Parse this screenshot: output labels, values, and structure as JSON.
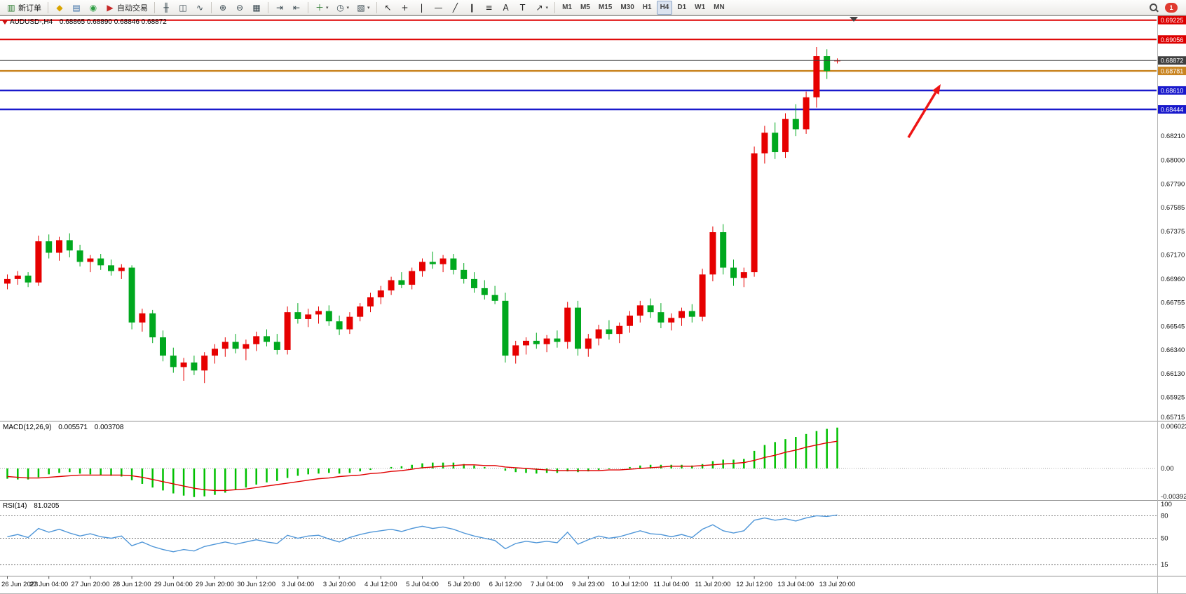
{
  "toolbar": {
    "notification_count": "1",
    "groups": [
      {
        "name": "trade",
        "items": [
          {
            "name": "new-order-button",
            "glyph": "▥",
            "color": "#2e7d32",
            "label": "新订单"
          }
        ]
      },
      {
        "name": "apps",
        "items": [
          {
            "name": "metaeditor-button",
            "glyph": "◆",
            "color": "#d9a400"
          },
          {
            "name": "print-button",
            "glyph": "▤",
            "color": "#3a6ea5"
          },
          {
            "name": "community-button",
            "glyph": "◉",
            "color": "#2f9e44"
          },
          {
            "name": "autotrading-button",
            "glyph": "▶",
            "color": "#c62828",
            "label": "自动交易"
          }
        ]
      },
      {
        "name": "chart-type",
        "items": [
          {
            "name": "bar-chart-button",
            "glyph": "╫",
            "color": "#37474f"
          },
          {
            "name": "candlestick-button",
            "glyph": "◫",
            "color": "#37474f"
          },
          {
            "name": "line-chart-button",
            "glyph": "∿",
            "color": "#37474f"
          }
        ]
      },
      {
        "name": "zoom",
        "items": [
          {
            "name": "zoom-in-button",
            "glyph": "⊕",
            "color": "#37474f"
          },
          {
            "name": "zoom-out-button",
            "glyph": "⊖",
            "color": "#37474f"
          },
          {
            "name": "tile-windows-button",
            "glyph": "▦",
            "color": "#37474f"
          }
        ]
      },
      {
        "name": "scroll",
        "items": [
          {
            "name": "auto-scroll-button",
            "glyph": "⇥",
            "color": "#37474f"
          },
          {
            "name": "chart-shift-button",
            "glyph": "⇤",
            "color": "#37474f"
          }
        ]
      },
      {
        "name": "dropdowns",
        "items": [
          {
            "name": "indicators-button",
            "glyph": "＋",
            "color": "#2e7d32",
            "caret": true
          },
          {
            "name": "periods-button",
            "glyph": "◷",
            "color": "#37474f",
            "caret": true
          },
          {
            "name": "templates-button",
            "glyph": "▧",
            "color": "#37474f",
            "caret": true
          }
        ]
      },
      {
        "name": "drawing",
        "items": [
          {
            "name": "cursor-button",
            "glyph": "↖",
            "color": "#222222"
          },
          {
            "name": "crosshair-button",
            "glyph": "+",
            "color": "#222222"
          },
          {
            "name": "vertical-line-button",
            "glyph": "|",
            "color": "#222222"
          },
          {
            "name": "horizontal-line-button",
            "glyph": "—",
            "color": "#222222"
          },
          {
            "name": "trendline-button",
            "glyph": "╱",
            "color": "#222222"
          },
          {
            "name": "channel-button",
            "glyph": "∥",
            "color": "#222222"
          },
          {
            "name": "fibonacci-button",
            "glyph": "≡",
            "color": "#222222"
          },
          {
            "name": "text-button",
            "glyph": "A",
            "color": "#222222"
          },
          {
            "name": "text-label-button",
            "glyph": "T",
            "color": "#222222"
          },
          {
            "name": "arrows-button",
            "glyph": "↗",
            "color": "#222222",
            "caret": true
          }
        ]
      },
      {
        "name": "timeframes",
        "items": [
          {
            "name": "tf-m1-button",
            "label": "M1"
          },
          {
            "name": "tf-m5-button",
            "label": "M5"
          },
          {
            "name": "tf-m15-button",
            "label": "M15"
          },
          {
            "name": "tf-m30-button",
            "label": "M30"
          },
          {
            "name": "tf-h1-button",
            "label": "H1"
          },
          {
            "name": "tf-h4-button",
            "label": "H4",
            "active": true
          },
          {
            "name": "tf-d1-button",
            "label": "D1"
          },
          {
            "name": "tf-w1-button",
            "label": "W1"
          },
          {
            "name": "tf-mn-button",
            "label": "MN"
          }
        ]
      }
    ]
  },
  "chart_data": {
    "type": "candlestick",
    "symbol_period": "AUDUSD-,H4",
    "ohlc_text": "0.68865 0.68890 0.68846 0.68872",
    "colors": {
      "bull": "#e60000",
      "bear": "#00a81e",
      "macd_hist": "#00c000",
      "macd_signal": "#e00000",
      "rsi": "#4f96d8"
    },
    "x_labels": [
      "26 Jun 2023",
      "27 Jun 04:00",
      "27 Jun 20:00",
      "28 Jun 12:00",
      "29 Jun 04:00",
      "29 Jun 20:00",
      "30 Jun 12:00",
      "3 Jul 04:00",
      "3 Jul 20:00",
      "4 Jul 12:00",
      "5 Jul 04:00",
      "5 Jul 20:00",
      "6 Jul 12:00",
      "7 Jul 04:00",
      "9 Jul 23:00",
      "10 Jul 12:00",
      "11 Jul 04:00",
      "11 Jul 20:00",
      "12 Jul 12:00",
      "13 Jul 04:00",
      "13 Jul 20:00"
    ],
    "candles": [
      [
        0.6692,
        0.67,
        0.6687,
        0.6696
      ],
      [
        0.6696,
        0.6703,
        0.6691,
        0.6699
      ],
      [
        0.6699,
        0.6702,
        0.6689,
        0.6693
      ],
      [
        0.6693,
        0.6734,
        0.669,
        0.6729
      ],
      [
        0.6729,
        0.6735,
        0.6714,
        0.6719
      ],
      [
        0.6719,
        0.6733,
        0.6712,
        0.673
      ],
      [
        0.673,
        0.6736,
        0.6715,
        0.6721
      ],
      [
        0.6721,
        0.6726,
        0.6707,
        0.6711
      ],
      [
        0.6711,
        0.6717,
        0.6702,
        0.6714
      ],
      [
        0.6714,
        0.6718,
        0.6704,
        0.6708
      ],
      [
        0.6708,
        0.6713,
        0.6699,
        0.6703
      ],
      [
        0.6703,
        0.6709,
        0.6696,
        0.6706
      ],
      [
        0.6706,
        0.6708,
        0.6652,
        0.6658
      ],
      [
        0.6658,
        0.667,
        0.665,
        0.6666
      ],
      [
        0.6666,
        0.6669,
        0.664,
        0.6645
      ],
      [
        0.6645,
        0.6651,
        0.6624,
        0.6629
      ],
      [
        0.6629,
        0.6636,
        0.6614,
        0.6619
      ],
      [
        0.6619,
        0.6627,
        0.6607,
        0.6623
      ],
      [
        0.6623,
        0.6629,
        0.6612,
        0.6616
      ],
      [
        0.6616,
        0.6632,
        0.6605,
        0.6629
      ],
      [
        0.6629,
        0.6639,
        0.6622,
        0.6635
      ],
      [
        0.6635,
        0.6645,
        0.6628,
        0.6641
      ],
      [
        0.6641,
        0.6648,
        0.6631,
        0.6635
      ],
      [
        0.6635,
        0.6643,
        0.6625,
        0.6639
      ],
      [
        0.6639,
        0.665,
        0.6633,
        0.6646
      ],
      [
        0.6646,
        0.6652,
        0.6637,
        0.6641
      ],
      [
        0.6641,
        0.6648,
        0.663,
        0.6634
      ],
      [
        0.6634,
        0.6672,
        0.663,
        0.6667
      ],
      [
        0.6667,
        0.6675,
        0.6657,
        0.6661
      ],
      [
        0.6661,
        0.667,
        0.6654,
        0.6665
      ],
      [
        0.6665,
        0.6672,
        0.6657,
        0.6668
      ],
      [
        0.6668,
        0.6673,
        0.6655,
        0.6659
      ],
      [
        0.6659,
        0.6664,
        0.6647,
        0.6652
      ],
      [
        0.6652,
        0.6667,
        0.6648,
        0.6663
      ],
      [
        0.6663,
        0.6675,
        0.6659,
        0.6672
      ],
      [
        0.6672,
        0.6684,
        0.6667,
        0.668
      ],
      [
        0.668,
        0.669,
        0.6674,
        0.6686
      ],
      [
        0.6686,
        0.6698,
        0.6682,
        0.6695
      ],
      [
        0.6695,
        0.6702,
        0.6688,
        0.6691
      ],
      [
        0.6691,
        0.6706,
        0.6687,
        0.6703
      ],
      [
        0.6703,
        0.6714,
        0.6698,
        0.6711
      ],
      [
        0.6711,
        0.672,
        0.6705,
        0.6709
      ],
      [
        0.6709,
        0.6717,
        0.6702,
        0.6714
      ],
      [
        0.6714,
        0.6718,
        0.67,
        0.6704
      ],
      [
        0.6704,
        0.671,
        0.6692,
        0.6696
      ],
      [
        0.6696,
        0.6702,
        0.6684,
        0.6688
      ],
      [
        0.6688,
        0.6695,
        0.6678,
        0.6682
      ],
      [
        0.6682,
        0.669,
        0.6674,
        0.6677
      ],
      [
        0.6677,
        0.6684,
        0.6623,
        0.6629
      ],
      [
        0.6629,
        0.6642,
        0.6622,
        0.6638
      ],
      [
        0.6638,
        0.6645,
        0.663,
        0.6642
      ],
      [
        0.6642,
        0.6649,
        0.6635,
        0.6639
      ],
      [
        0.6639,
        0.6647,
        0.6632,
        0.6644
      ],
      [
        0.6644,
        0.6651,
        0.6636,
        0.6641
      ],
      [
        0.6641,
        0.6676,
        0.6635,
        0.6671
      ],
      [
        0.6671,
        0.6677,
        0.6629,
        0.6635
      ],
      [
        0.6635,
        0.6648,
        0.6628,
        0.6644
      ],
      [
        0.6644,
        0.6656,
        0.6638,
        0.6652
      ],
      [
        0.6652,
        0.666,
        0.6643,
        0.6648
      ],
      [
        0.6648,
        0.6658,
        0.664,
        0.6655
      ],
      [
        0.6655,
        0.6668,
        0.6649,
        0.6664
      ],
      [
        0.6664,
        0.6677,
        0.6658,
        0.6673
      ],
      [
        0.6673,
        0.6679,
        0.6662,
        0.6667
      ],
      [
        0.6667,
        0.6675,
        0.6653,
        0.6658
      ],
      [
        0.6658,
        0.6666,
        0.6651,
        0.6662
      ],
      [
        0.6662,
        0.6671,
        0.6655,
        0.6668
      ],
      [
        0.6668,
        0.6674,
        0.6658,
        0.6663
      ],
      [
        0.6663,
        0.6705,
        0.6659,
        0.67
      ],
      [
        0.67,
        0.6742,
        0.6694,
        0.6737
      ],
      [
        0.6737,
        0.6744,
        0.67,
        0.6706
      ],
      [
        0.6706,
        0.6713,
        0.669,
        0.6697
      ],
      [
        0.6697,
        0.6706,
        0.6689,
        0.6702
      ],
      [
        0.6702,
        0.6812,
        0.6698,
        0.6806
      ],
      [
        0.6806,
        0.683,
        0.6797,
        0.6824
      ],
      [
        0.6824,
        0.6833,
        0.6801,
        0.6807
      ],
      [
        0.6807,
        0.6841,
        0.6802,
        0.6836
      ],
      [
        0.6836,
        0.6849,
        0.6821,
        0.6827
      ],
      [
        0.6827,
        0.686,
        0.6823,
        0.6855
      ],
      [
        0.6855,
        0.6899,
        0.6846,
        0.6891
      ],
      [
        0.6891,
        0.6897,
        0.6871,
        0.6878
      ],
      [
        0.68865,
        0.6889,
        0.68846,
        0.68872
      ]
    ],
    "price_lines": [
      {
        "label": "0.69225",
        "color": "#dd0000",
        "width": 2
      },
      {
        "label": "0.69056",
        "color": "#dd0000",
        "width": 2
      },
      {
        "label": "0.68872",
        "color": "#3f3f3f",
        "width": 1,
        "above": true
      },
      {
        "label": "0.68781",
        "color": "#c98420",
        "width": 2.5
      },
      {
        "label": "0.68610",
        "color": "#1919cc",
        "width": 2.5
      },
      {
        "label": "0.68444",
        "color": "#1919cc",
        "width": 2.5
      }
    ],
    "y_ticks": [
      "0.68210",
      "0.68000",
      "0.67790",
      "0.67585",
      "0.67375",
      "0.67170",
      "0.66960",
      "0.66755",
      "0.66545",
      "0.66340",
      "0.66130",
      "0.65925",
      "0.65715"
    ],
    "indicators": {
      "macd": {
        "label": "MACD(12,26,9)",
        "value_main": "0.005571",
        "value_signal": "0.003708",
        "scale": {
          "max": 0.006023,
          "min": -0.003921,
          "labels": [
            "0.006023",
            "0.00",
            "-0.003921"
          ]
        },
        "histogram": [
          -0.0014,
          -0.0015,
          -0.0015,
          -0.0012,
          -0.0008,
          -0.0006,
          -0.0005,
          -0.0007,
          -0.0008,
          -0.0009,
          -0.001,
          -0.0011,
          -0.0016,
          -0.0021,
          -0.0026,
          -0.003,
          -0.0034,
          -0.0037,
          -0.0039,
          -0.0038,
          -0.0036,
          -0.0033,
          -0.0029,
          -0.0026,
          -0.0022,
          -0.0019,
          -0.0017,
          -0.0013,
          -0.001,
          -0.0008,
          -0.0007,
          -0.0006,
          -0.0007,
          -0.0006,
          -0.0004,
          -0.0002,
          0.0,
          0.0002,
          0.0003,
          0.0005,
          0.0007,
          0.0008,
          0.0008,
          0.0008,
          0.0006,
          0.0004,
          0.0002,
          0.0,
          -0.0003,
          -0.0005,
          -0.0006,
          -0.0007,
          -0.0006,
          -0.0006,
          -0.0004,
          -0.0005,
          -0.0004,
          -0.0002,
          -0.0001,
          0.0,
          0.0002,
          0.0004,
          0.0005,
          0.0005,
          0.0005,
          0.0005,
          0.0004,
          0.0006,
          0.001,
          0.0012,
          0.0012,
          0.0013,
          0.0024,
          0.0032,
          0.0036,
          0.004,
          0.0043,
          0.0047,
          0.0051,
          0.0054,
          0.005571
        ],
        "signal": [
          -0.0011,
          -0.0012,
          -0.0013,
          -0.0013,
          -0.0012,
          -0.0011,
          -0.001,
          -0.0009,
          -0.0009,
          -0.0009,
          -0.0009,
          -0.0009,
          -0.001,
          -0.0012,
          -0.0015,
          -0.0018,
          -0.0021,
          -0.0024,
          -0.0027,
          -0.0029,
          -0.003,
          -0.003,
          -0.0029,
          -0.0028,
          -0.0026,
          -0.0024,
          -0.0022,
          -0.002,
          -0.0018,
          -0.0016,
          -0.0014,
          -0.0013,
          -0.0011,
          -0.001,
          -0.0009,
          -0.0007,
          -0.0006,
          -0.0004,
          -0.0003,
          -0.0001,
          0.0001,
          0.0002,
          0.0003,
          0.0004,
          0.0005,
          0.0005,
          0.0004,
          0.0004,
          0.0002,
          0.0001,
          0.0,
          -0.0001,
          -0.0002,
          -0.0003,
          -0.0003,
          -0.0003,
          -0.0003,
          -0.0003,
          -0.0002,
          -0.0002,
          -0.0001,
          0.0,
          0.0001,
          0.0002,
          0.0003,
          0.0003,
          0.0003,
          0.0004,
          0.0005,
          0.0006,
          0.0007,
          0.0008,
          0.0011,
          0.0015,
          0.0018,
          0.0022,
          0.0025,
          0.0029,
          0.0032,
          0.0035,
          0.003708
        ]
      },
      "rsi": {
        "label": "RSI(14)",
        "value": "81.0205",
        "levels": [
          80,
          50,
          15
        ],
        "scale": {
          "labels": [
            "100",
            "80",
            "50",
            "15"
          ]
        },
        "values": [
          52,
          55,
          51,
          63,
          58,
          62,
          57,
          53,
          56,
          52,
          50,
          53,
          40,
          45,
          39,
          35,
          32,
          35,
          33,
          39,
          42,
          45,
          42,
          45,
          48,
          45,
          43,
          54,
          50,
          53,
          54,
          49,
          45,
          51,
          55,
          58,
          60,
          62,
          59,
          63,
          66,
          63,
          65,
          62,
          57,
          53,
          50,
          47,
          36,
          43,
          46,
          44,
          46,
          44,
          58,
          42,
          48,
          53,
          50,
          52,
          56,
          60,
          56,
          55,
          52,
          55,
          51,
          62,
          68,
          60,
          57,
          60,
          74,
          77,
          74,
          76,
          73,
          77,
          80,
          79,
          81.0205
        ]
      }
    },
    "annotations": {
      "arrow": {
        "tail": [
          1296,
          196
        ],
        "tip": [
          1342,
          120
        ],
        "color": "#ee1414"
      }
    }
  }
}
